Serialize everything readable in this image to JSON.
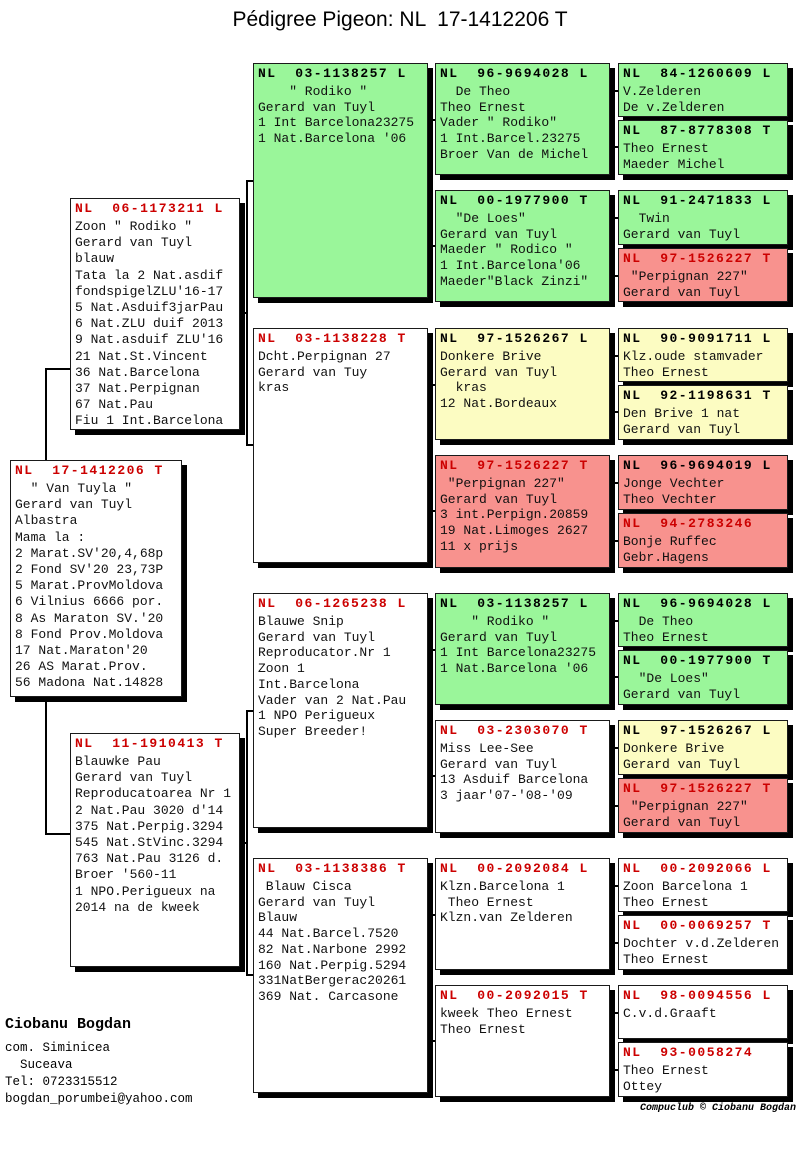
{
  "title": "Pédigree Pigeon: NL  17-1412206 T",
  "colors": {
    "box_green": "#9af69a",
    "box_yellow": "#fcfcc2",
    "box_pink": "#f8928e",
    "box_white": "#ffffff",
    "header_red": "#cc0000",
    "header_black": "#000000"
  },
  "boxes": [
    {
      "ring": "NL  17-1412206 T",
      "bg": "white",
      "header_color": "red",
      "body": "  \" Van Tuyla \"\nGerard van Tuyl\nAlbastra\nMama la :\n2 Marat.SV'20,4,68p\n2 Fond SV'20 23,73P\n5 Marat.ProvMoldova\n6 Vilnius 6666 por.\n8 As Maraton SV.'20\n8 Fond Prov.Moldova\n17 Nat.Maraton'20\n26 AS Marat.Prov.\n56 Madona Nat.14828"
    },
    {
      "ring": "NL  06-1173211 L",
      "bg": "white",
      "header_color": "red",
      "body": "Zoon \" Rodiko \"\nGerard van Tuyl\nblauw\nTata la 2 Nat.asdif\nfondspigelZLU'16-17\n5 Nat.Asduif3jarPau\n6 Nat.ZLU duif 2013\n9 Nat.asduif ZLU'16\n21 Nat.St.Vincent\n36 Nat.Barcelona\n37 Nat.Perpignan\n67 Nat.Pau\nFiu 1 Int.Barcelona"
    },
    {
      "ring": "NL  11-1910413 T",
      "bg": "white",
      "header_color": "red",
      "body": "Blauwke Pau\nGerard van Tuyl\nReproducatoarea Nr 1\n2 Nat.Pau 3020 d'14\n375 Nat.Perpig.3294\n545 Nat.StVinc.3294\n763 Nat.Pau 3126 d.\nBroer '560-11\n1 NPO.Perigueux na\n2014 na de kweek"
    },
    {
      "ring": "NL  03-1138257 L",
      "bg": "green",
      "header_color": "black",
      "body": "    \" Rodiko \"\nGerard van Tuyl\n1 Int Barcelona23275\n1 Nat.Barcelona '06"
    },
    {
      "ring": "NL  03-1138228 T",
      "bg": "white",
      "header_color": "red",
      "body": "Dcht.Perpignan 27\nGerard van Tuy\nkras"
    },
    {
      "ring": "NL  06-1265238 L",
      "bg": "white",
      "header_color": "red",
      "body": "Blauwe Snip\nGerard van Tuyl\nReproducator.Nr 1\nZoon 1\nInt.Barcelona\nVader van 2 Nat.Pau\n1 NPO Perigueux\nSuper Breeder!"
    },
    {
      "ring": "NL  03-1138386 T",
      "bg": "white",
      "header_color": "red",
      "body": " Blauw Cisca\nGerard van Tuyl\nBlauw\n44 Nat.Barcel.7520\n82 Nat.Narbone 2992\n160 Nat.Perpig.5294\n331NatBergerac20261\n369 Nat. Carcasone"
    },
    {
      "ring": "NL  96-9694028 L",
      "bg": "green",
      "header_color": "black",
      "body": "  De Theo\nTheo Ernest\nVader \" Rodiko\"\n1 Int.Barcel.23275\nBroer Van de Michel"
    },
    {
      "ring": "NL  00-1977900 T",
      "bg": "green",
      "header_color": "black",
      "body": "  \"De Loes\"\nGerard van Tuyl\nMaeder \" Rodico \"\n1 Int.Barcelona'06\nMaeder\"Black Zinzi\""
    },
    {
      "ring": "NL  97-1526267 L",
      "bg": "yellow",
      "header_color": "black",
      "body": "Donkere Brive\nGerard van Tuyl\n  kras\n12 Nat.Bordeaux"
    },
    {
      "ring": "NL  97-1526227 T",
      "bg": "pink",
      "header_color": "red",
      "body": " \"Perpignan 227\"\nGerard van Tuyl\n3 int.Perpign.20859\n19 Nat.Limoges 2627\n11 x prijs"
    },
    {
      "ring": "NL  03-1138257 L",
      "bg": "green",
      "header_color": "black",
      "body": "    \" Rodiko \"\nGerard van Tuyl\n1 Int Barcelona23275\n1 Nat.Barcelona '06"
    },
    {
      "ring": "NL  03-2303070 T",
      "bg": "white",
      "header_color": "red",
      "body": "Miss Lee-See\nGerard van Tuyl\n13 Asduif Barcelona\n3 jaar'07-'08-'09"
    },
    {
      "ring": "NL  00-2092084 L",
      "bg": "white",
      "header_color": "red",
      "body": "Klzn.Barcelona 1\n Theo Ernest\nKlzn.van Zelderen"
    },
    {
      "ring": "NL  00-2092015 T",
      "bg": "white",
      "header_color": "red",
      "body": "kweek Theo Ernest\nTheo Ernest"
    },
    {
      "ring": "NL  84-1260609 L",
      "bg": "green",
      "header_color": "black",
      "body": "V.Zelderen\nDe v.Zelderen"
    },
    {
      "ring": "NL  87-8778308 T",
      "bg": "green",
      "header_color": "black",
      "body": "Theo Ernest\nMaeder Michel"
    },
    {
      "ring": "NL  91-2471833 L",
      "bg": "green",
      "header_color": "black",
      "body": "  Twin\nGerard van Tuyl"
    },
    {
      "ring": "NL  97-1526227 T",
      "bg": "pink",
      "header_color": "red",
      "body": " \"Perpignan 227\"\nGerard van Tuyl"
    },
    {
      "ring": "NL  90-9091711 L",
      "bg": "yellow",
      "header_color": "black",
      "body": "Klz.oude stamvader\nTheo Ernest"
    },
    {
      "ring": "NL  92-1198631 T",
      "bg": "yellow",
      "header_color": "black",
      "body": "Den Brive 1 nat\nGerard van Tuyl"
    },
    {
      "ring": "NL  96-9694019 L",
      "bg": "pink",
      "header_color": "black",
      "body": "Jonge Vechter\nTheo Vechter"
    },
    {
      "ring": "NL  94-2783246",
      "bg": "pink",
      "header_color": "red",
      "body": "Bonje Ruffec\nGebr.Hagens"
    },
    {
      "ring": "NL  96-9694028 L",
      "bg": "green",
      "header_color": "black",
      "body": "  De Theo\nTheo Ernest"
    },
    {
      "ring": "NL  00-1977900 T",
      "bg": "green",
      "header_color": "black",
      "body": "  \"De Loes\"\nGerard van Tuyl"
    },
    {
      "ring": "NL  97-1526267 L",
      "bg": "yellow",
      "header_color": "black",
      "body": "Donkere Brive\nGerard van Tuyl"
    },
    {
      "ring": "NL  97-1526227 T",
      "bg": "pink",
      "header_color": "red",
      "body": " \"Perpignan 227\"\nGerard van Tuyl"
    },
    {
      "ring": "NL  00-2092066 L",
      "bg": "white",
      "header_color": "red",
      "body": "Zoon Barcelona 1\nTheo Ernest"
    },
    {
      "ring": "NL  00-0069257 T",
      "bg": "white",
      "header_color": "red",
      "body": "Dochter v.d.Zelderen\nTheo Ernest"
    },
    {
      "ring": "NL  98-0094556 L",
      "bg": "white",
      "header_color": "red",
      "body": "C.v.d.Graaft"
    },
    {
      "ring": "NL  93-0058274",
      "bg": "white",
      "header_color": "red",
      "body": "Theo Ernest\nOttey"
    }
  ],
  "footer": {
    "name": "Ciobanu Bogdan",
    "details": "com. Siminicea\n  Suceava\nTel: 0723315512\nbogdan_porumbei@yahoo.com"
  },
  "credit": "Compuclub © Ciobanu Bogdan"
}
